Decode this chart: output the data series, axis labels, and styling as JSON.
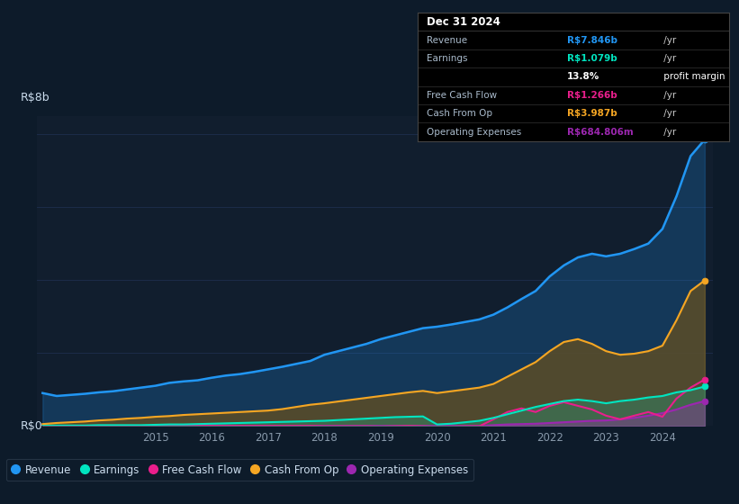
{
  "bg_color": "#0d1b2a",
  "plot_bg": "#111e2e",
  "ylabel_text": "R$8b",
  "y0_text": "R$0",
  "ylim": [
    0,
    8.5
  ],
  "colors": {
    "revenue": "#2196f3",
    "earnings": "#00e5c0",
    "free_cash_flow": "#e91e8c",
    "cash_from_op": "#f5a623",
    "operating_expenses": "#9c27b0"
  },
  "legend_labels": [
    "Revenue",
    "Earnings",
    "Free Cash Flow",
    "Cash From Op",
    "Operating Expenses"
  ],
  "legend_colors": [
    "#2196f3",
    "#00e5c0",
    "#e91e8c",
    "#f5a623",
    "#9c27b0"
  ],
  "x_years": [
    2013.0,
    2013.25,
    2013.5,
    2013.75,
    2014.0,
    2014.25,
    2014.5,
    2014.75,
    2015.0,
    2015.25,
    2015.5,
    2015.75,
    2016.0,
    2016.25,
    2016.5,
    2016.75,
    2017.0,
    2017.25,
    2017.5,
    2017.75,
    2018.0,
    2018.25,
    2018.5,
    2018.75,
    2019.0,
    2019.25,
    2019.5,
    2019.75,
    2020.0,
    2020.25,
    2020.5,
    2020.75,
    2021.0,
    2021.25,
    2021.5,
    2021.75,
    2022.0,
    2022.25,
    2022.5,
    2022.75,
    2023.0,
    2023.25,
    2023.5,
    2023.75,
    2024.0,
    2024.25,
    2024.5,
    2024.75
  ],
  "revenue": [
    0.9,
    0.82,
    0.85,
    0.88,
    0.92,
    0.95,
    1.0,
    1.05,
    1.1,
    1.18,
    1.22,
    1.25,
    1.32,
    1.38,
    1.42,
    1.48,
    1.55,
    1.62,
    1.7,
    1.78,
    1.95,
    2.05,
    2.15,
    2.25,
    2.38,
    2.48,
    2.58,
    2.68,
    2.72,
    2.78,
    2.85,
    2.92,
    3.05,
    3.25,
    3.48,
    3.7,
    4.1,
    4.4,
    4.62,
    4.72,
    4.65,
    4.72,
    4.85,
    5.0,
    5.4,
    6.3,
    7.4,
    7.85
  ],
  "cash_from_op": [
    0.05,
    0.08,
    0.1,
    0.12,
    0.15,
    0.17,
    0.2,
    0.22,
    0.25,
    0.27,
    0.3,
    0.32,
    0.34,
    0.36,
    0.38,
    0.4,
    0.42,
    0.46,
    0.52,
    0.58,
    0.62,
    0.67,
    0.72,
    0.77,
    0.82,
    0.87,
    0.92,
    0.96,
    0.9,
    0.95,
    1.0,
    1.05,
    1.15,
    1.35,
    1.55,
    1.75,
    2.05,
    2.3,
    2.38,
    2.25,
    2.05,
    1.95,
    1.98,
    2.05,
    2.2,
    2.9,
    3.7,
    3.99
  ],
  "earnings": [
    0.01,
    0.01,
    0.01,
    0.01,
    0.02,
    0.02,
    0.02,
    0.02,
    0.03,
    0.04,
    0.04,
    0.05,
    0.06,
    0.07,
    0.08,
    0.09,
    0.1,
    0.11,
    0.12,
    0.13,
    0.14,
    0.16,
    0.18,
    0.2,
    0.22,
    0.24,
    0.25,
    0.26,
    0.04,
    0.06,
    0.1,
    0.14,
    0.22,
    0.32,
    0.42,
    0.52,
    0.6,
    0.68,
    0.72,
    0.68,
    0.62,
    0.68,
    0.72,
    0.78,
    0.82,
    0.92,
    0.98,
    1.08
  ],
  "free_cash_flow": [
    -0.02,
    -0.02,
    -0.02,
    -0.01,
    -0.01,
    -0.01,
    -0.01,
    -0.01,
    -0.01,
    -0.01,
    -0.01,
    0.0,
    0.0,
    0.0,
    0.0,
    0.0,
    0.0,
    0.0,
    0.0,
    0.0,
    -0.01,
    -0.01,
    -0.01,
    -0.01,
    -0.02,
    -0.01,
    0.0,
    -0.01,
    -0.03,
    -0.02,
    -0.01,
    -0.01,
    0.18,
    0.38,
    0.48,
    0.38,
    0.55,
    0.65,
    0.55,
    0.45,
    0.28,
    0.18,
    0.28,
    0.38,
    0.25,
    0.75,
    1.05,
    1.27
  ],
  "operating_expenses": [
    0.0,
    0.0,
    0.0,
    0.0,
    0.0,
    0.0,
    0.0,
    0.0,
    0.0,
    0.0,
    0.0,
    0.0,
    0.0,
    0.0,
    0.0,
    0.0,
    0.0,
    0.0,
    0.0,
    0.0,
    0.0,
    0.0,
    0.0,
    0.0,
    0.0,
    0.0,
    0.0,
    0.0,
    0.0,
    0.0,
    0.0,
    0.0,
    0.02,
    0.04,
    0.05,
    0.06,
    0.08,
    0.1,
    0.12,
    0.14,
    0.15,
    0.18,
    0.22,
    0.28,
    0.35,
    0.45,
    0.58,
    0.68
  ],
  "xtick_years": [
    2015,
    2016,
    2017,
    2018,
    2019,
    2020,
    2021,
    2022,
    2023,
    2024
  ],
  "info_box_title": "Dec 31 2024",
  "info_rows": [
    {
      "label": "Revenue",
      "value": "R$7.846b",
      "suffix": " /yr",
      "color": "#2196f3"
    },
    {
      "label": "Earnings",
      "value": "R$1.079b",
      "suffix": " /yr",
      "color": "#00e5c0"
    },
    {
      "label": "",
      "value": "13.8%",
      "suffix": " profit margin",
      "color": "#ffffff"
    },
    {
      "label": "Free Cash Flow",
      "value": "R$1.266b",
      "suffix": " /yr",
      "color": "#e91e8c"
    },
    {
      "label": "Cash From Op",
      "value": "R$3.987b",
      "suffix": " /yr",
      "color": "#f5a623"
    },
    {
      "label": "Operating Expenses",
      "value": "R$684.806m",
      "suffix": " /yr",
      "color": "#9c27b0"
    }
  ]
}
